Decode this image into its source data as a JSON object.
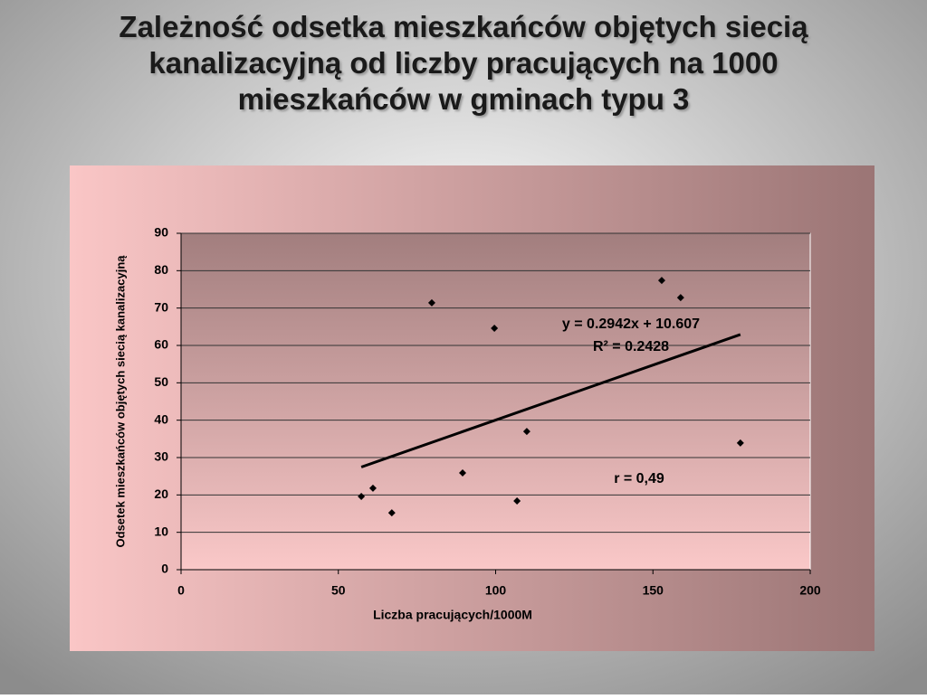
{
  "chart_data": {
    "type": "scatter",
    "title": "Zależność odsetka mieszkańców objętych siecią kanalizacyjną od liczby pracujących na 1000 mieszkańców w gminach typu 3",
    "x_label": "Liczba pracujących/1000M",
    "y_label": "Odsetek mieszkańców objętych siecią kanalizacyjną",
    "x": [
      57.3,
      61,
      67,
      79.7,
      89.5,
      99.6,
      106.8,
      109.9,
      152.8,
      158.8,
      177.8
    ],
    "values": [
      19.6,
      21.8,
      15.2,
      71.4,
      25.9,
      64.6,
      18.4,
      37,
      77.4,
      72.8,
      33.9
    ],
    "color": "#000000",
    "xlim": [
      0,
      200
    ],
    "xticks": [
      0,
      50,
      100,
      150,
      200
    ],
    "ylim": [
      0,
      90
    ],
    "yticks": [
      0,
      10,
      20,
      30,
      40,
      50,
      60,
      70,
      80,
      90
    ],
    "grid": true,
    "trendline": {
      "slope": 0.2942,
      "intercept": 10.607,
      "label": "y = 0.2942x + 10.607",
      "r2_label": "R² = 0.2428"
    },
    "annotation": "r = 0,49"
  }
}
